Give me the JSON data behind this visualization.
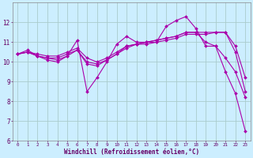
{
  "background_color": "#cceeff",
  "grid_color": "#aacccc",
  "line_color": "#aa00aa",
  "xlim": [
    -0.5,
    23.5
  ],
  "ylim": [
    6,
    13
  ],
  "xlabel": "Windchill (Refroidissement éolien,°C)",
  "xticks": [
    0,
    1,
    2,
    3,
    4,
    5,
    6,
    7,
    8,
    9,
    10,
    11,
    12,
    13,
    14,
    15,
    16,
    17,
    18,
    19,
    20,
    21,
    22,
    23
  ],
  "yticks": [
    6,
    7,
    8,
    9,
    10,
    11,
    12
  ],
  "series": [
    {
      "x": [
        0,
        1,
        2,
        3,
        4,
        5,
        6,
        7,
        8,
        9,
        10,
        11,
        12,
        13,
        14,
        15,
        16,
        17,
        18,
        19,
        20,
        21,
        22,
        23
      ],
      "y": [
        10.4,
        10.6,
        10.3,
        10.1,
        10.0,
        10.3,
        11.1,
        8.5,
        9.2,
        10.0,
        10.9,
        11.3,
        11.0,
        11.0,
        11.0,
        11.8,
        12.1,
        12.3,
        11.7,
        10.8,
        10.8,
        9.5,
        8.4,
        6.5
      ]
    },
    {
      "x": [
        0,
        1,
        2,
        3,
        4,
        5,
        6,
        7,
        8,
        9,
        10,
        11,
        12,
        13,
        14,
        15,
        16,
        17,
        18,
        19,
        20,
        21,
        22,
        23
      ],
      "y": [
        10.4,
        10.5,
        10.3,
        10.2,
        10.2,
        10.4,
        10.6,
        9.9,
        9.8,
        10.1,
        10.4,
        10.8,
        10.9,
        11.0,
        11.1,
        11.2,
        11.3,
        11.5,
        11.5,
        11.5,
        11.5,
        11.5,
        10.5,
        8.5
      ]
    },
    {
      "x": [
        0,
        1,
        2,
        3,
        4,
        5,
        6,
        7,
        8,
        9,
        10,
        11,
        12,
        13,
        14,
        15,
        16,
        17,
        18,
        19,
        20,
        21,
        22,
        23
      ],
      "y": [
        10.4,
        10.5,
        10.4,
        10.3,
        10.3,
        10.5,
        10.7,
        10.2,
        10.0,
        10.2,
        10.5,
        10.8,
        10.9,
        11.0,
        11.1,
        11.2,
        11.3,
        11.5,
        11.5,
        11.0,
        10.8,
        10.2,
        9.5,
        8.2
      ]
    },
    {
      "x": [
        0,
        1,
        2,
        3,
        4,
        5,
        6,
        7,
        8,
        9,
        10,
        11,
        12,
        13,
        14,
        15,
        16,
        17,
        18,
        19,
        20,
        21,
        22,
        23
      ],
      "y": [
        10.4,
        10.5,
        10.3,
        10.2,
        10.1,
        10.3,
        10.6,
        10.0,
        9.9,
        10.1,
        10.4,
        10.7,
        10.9,
        10.9,
        11.0,
        11.1,
        11.2,
        11.4,
        11.4,
        11.4,
        11.5,
        11.5,
        10.8,
        9.2
      ]
    }
  ]
}
